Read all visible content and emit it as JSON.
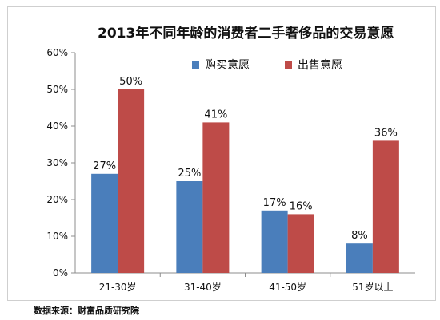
{
  "chart_data": {
    "type": "bar",
    "title": "2013年不同年龄的消费者二手奢侈品的交易意愿",
    "categories": [
      "21-30岁",
      "31-40岁",
      "41-50岁",
      "51岁以上"
    ],
    "series": [
      {
        "name": "购买意愿",
        "values": [
          27,
          25,
          17,
          8
        ],
        "labels": [
          "27%",
          "25%",
          "17%",
          "8%"
        ],
        "color": "#4a7ebb"
      },
      {
        "name": "出售意愿",
        "values": [
          50,
          41,
          16,
          36
        ],
        "labels": [
          "50%",
          "41%",
          "16%",
          "36%"
        ],
        "color": "#be4b48"
      }
    ],
    "ylim": [
      0,
      60
    ],
    "yticks": [
      "0%",
      "10%",
      "20%",
      "30%",
      "40%",
      "50%",
      "60%"
    ],
    "grid": false,
    "legend": "top-center"
  },
  "source": "数据来源：财富品质研究院"
}
